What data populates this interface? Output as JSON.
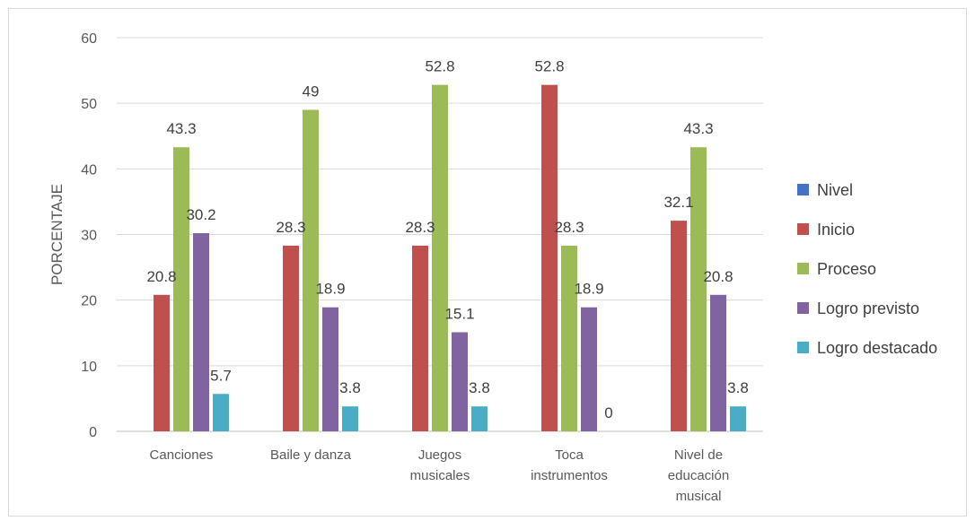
{
  "chart_data": {
    "type": "bar",
    "categories": [
      [
        "Canciones"
      ],
      [
        "Baile y danza"
      ],
      [
        "Juegos",
        "musicales"
      ],
      [
        "Toca",
        "instrumentos"
      ],
      [
        "Nivel de",
        "educación",
        "musical"
      ]
    ],
    "series": [
      {
        "name": "Nivel",
        "color": "#4472c4",
        "values": [
          null,
          null,
          null,
          null,
          null
        ]
      },
      {
        "name": "Inicio",
        "color": "#c0504d",
        "values": [
          20.8,
          28.3,
          28.3,
          52.8,
          32.1
        ]
      },
      {
        "name": "Proceso",
        "color": "#9bbb59",
        "values": [
          43.3,
          49,
          52.8,
          28.3,
          43.3
        ]
      },
      {
        "name": "Logro previsto",
        "color": "#8064a2",
        "values": [
          30.2,
          18.9,
          15.1,
          18.9,
          20.8
        ]
      },
      {
        "name": "Logro destacado",
        "color": "#4bacc6",
        "values": [
          5.7,
          3.8,
          3.8,
          0,
          3.8
        ]
      }
    ],
    "ylabel": "PORCENTAJE",
    "xlabel": "",
    "ylim": [
      0,
      60
    ],
    "yticks": [
      0,
      10,
      20,
      30,
      40,
      50,
      60
    ],
    "grid": true,
    "legend_position": "right"
  }
}
